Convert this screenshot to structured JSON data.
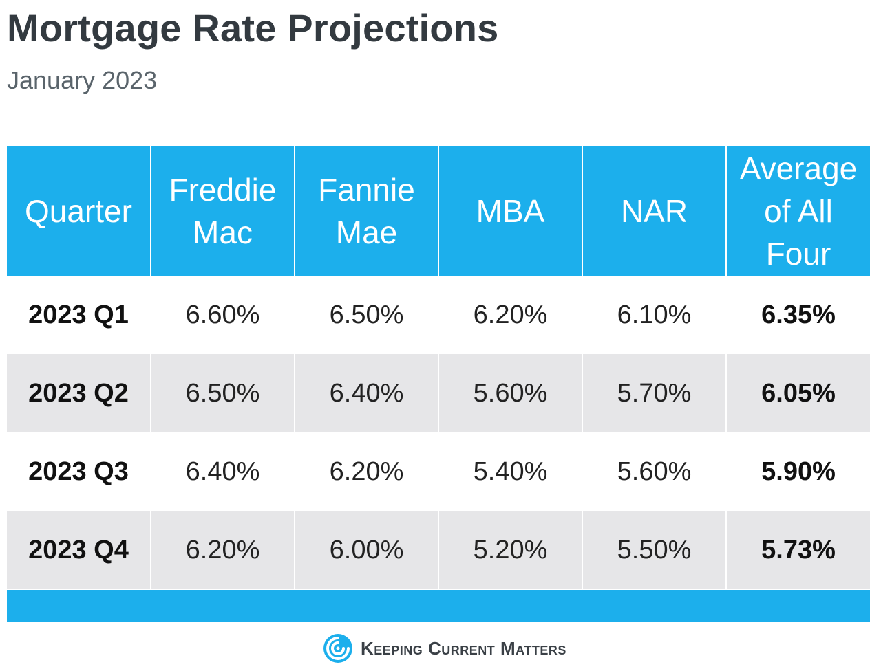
{
  "title": "Mortgage Rate Projections",
  "subtitle": "January 2023",
  "colors": {
    "header_bg": "#1cafec",
    "alt_row_bg": "#e6e6e8",
    "title_text": "#333a40"
  },
  "table": {
    "headers": [
      [
        "Quarter"
      ],
      [
        "Freddie",
        "Mac"
      ],
      [
        "Fannie",
        "Mae"
      ],
      [
        "MBA"
      ],
      [
        "NAR"
      ],
      [
        "Average",
        "of All",
        "Four"
      ]
    ],
    "rows": [
      {
        "quarter": "2023 Q1",
        "freddie_mac": "6.60%",
        "fannie_mae": "6.50%",
        "mba": "6.20%",
        "nar": "6.10%",
        "average": "6.35%"
      },
      {
        "quarter": "2023 Q2",
        "freddie_mac": "6.50%",
        "fannie_mae": "6.40%",
        "mba": "5.60%",
        "nar": "5.70%",
        "average": "6.05%"
      },
      {
        "quarter": "2023 Q3",
        "freddie_mac": "6.40%",
        "fannie_mae": "6.20%",
        "mba": "5.40%",
        "nar": "5.60%",
        "average": "5.90%"
      },
      {
        "quarter": "2023 Q4",
        "freddie_mac": "6.20%",
        "fannie_mae": "6.00%",
        "mba": "5.20%",
        "nar": "5.50%",
        "average": "5.73%"
      }
    ]
  },
  "chart_data": {
    "type": "table",
    "title": "Mortgage Rate Projections",
    "subtitle": "January 2023",
    "columns": [
      "Quarter",
      "Freddie Mac",
      "Fannie Mae",
      "MBA",
      "NAR",
      "Average of All Four"
    ],
    "categories": [
      "2023 Q1",
      "2023 Q2",
      "2023 Q3",
      "2023 Q4"
    ],
    "series": [
      {
        "name": "Freddie Mac",
        "values": [
          6.6,
          6.5,
          6.4,
          6.2
        ]
      },
      {
        "name": "Fannie Mae",
        "values": [
          6.5,
          6.4,
          6.2,
          6.0
        ]
      },
      {
        "name": "MBA",
        "values": [
          6.2,
          5.6,
          5.4,
          5.2
        ]
      },
      {
        "name": "NAR",
        "values": [
          6.1,
          5.7,
          5.6,
          5.5
        ]
      },
      {
        "name": "Average of All Four",
        "values": [
          6.35,
          6.05,
          5.9,
          5.73
        ]
      }
    ],
    "unit": "%"
  },
  "brand": {
    "logo_icon": "kcm-swirl-icon",
    "name": "Keeping Current Matters"
  }
}
